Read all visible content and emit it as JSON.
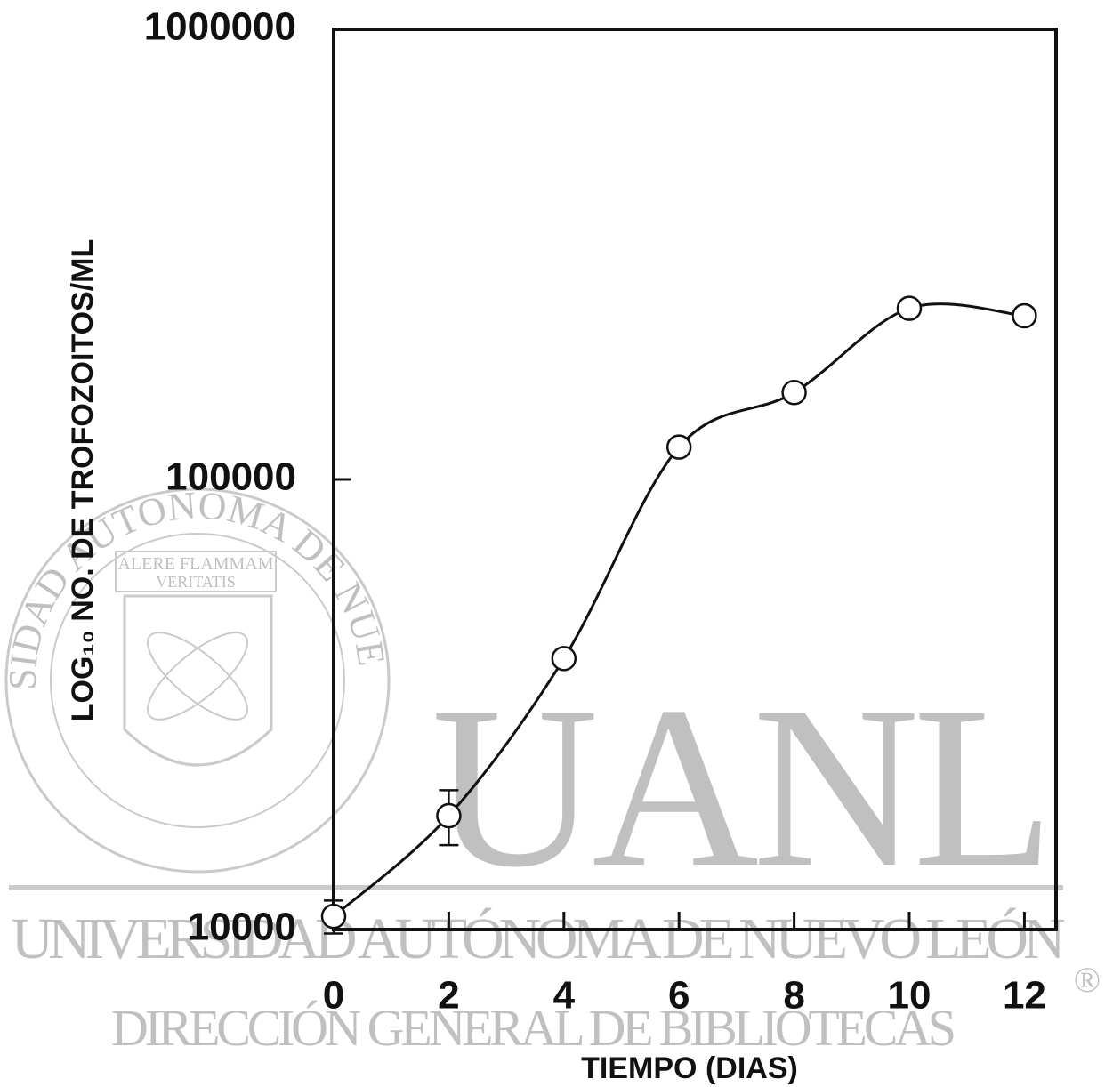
{
  "chart_data": {
    "type": "line",
    "x_label": "TIEMPO (DIAS)",
    "y_label": "LOG₁₀ NO. DE TROFOZOITOS/ML",
    "x": [
      0,
      2,
      4,
      6,
      8,
      10,
      12
    ],
    "series": [
      {
        "color": "#111111",
        "values": [
          10700,
          17900,
          40000,
          118000,
          156000,
          240000,
          231000
        ],
        "errors": [
          900,
          2500,
          null,
          null,
          null,
          null,
          null
        ]
      }
    ],
    "xlim": [
      0,
      12.55
    ],
    "ylim": [
      10000,
      1000000
    ],
    "xticks": [
      0,
      2,
      4,
      6,
      8,
      10,
      12
    ],
    "yticks": [
      10000,
      100000,
      1000000
    ],
    "y_scale": "log",
    "marker": "open-circle",
    "smooth": true,
    "watermark": {
      "big": "UANL",
      "line1": "UNIVERSIDAD AUTÓNOMA DE NUEVO LEÓN",
      "line2": "DIRECCIÓN GENERAL DE BIBLIOTECAS",
      "registered": "®",
      "seal_ring": "UNIVERSIDAD AUTONOMA DE NUEVO LEON",
      "seal_motto1": "ALERE FLAMMAM",
      "seal_motto2": "VERITATIS"
    }
  }
}
